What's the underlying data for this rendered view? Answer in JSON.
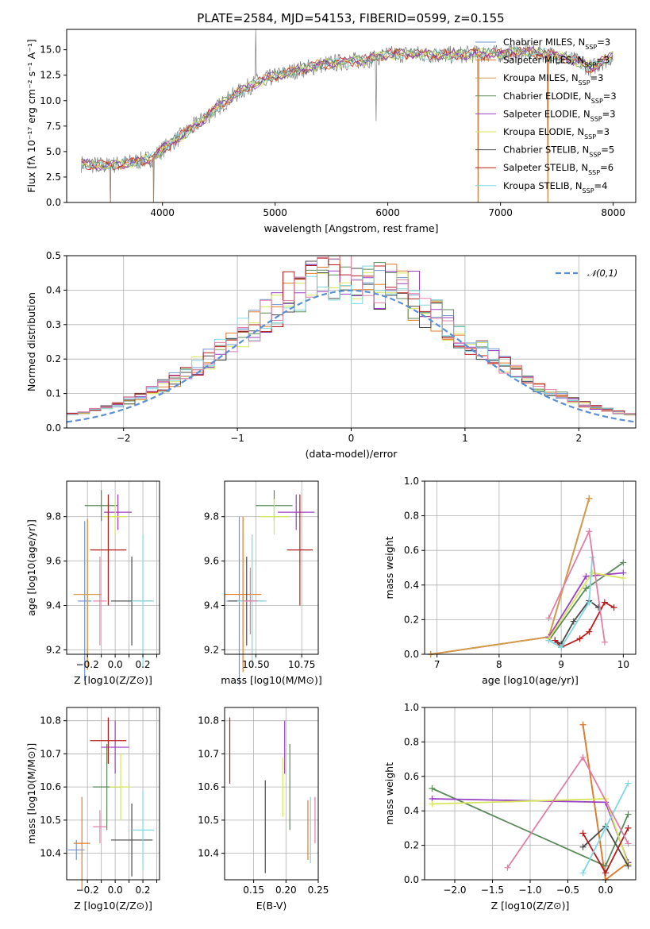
{
  "figure": {
    "title": "PLATE=2584, MJD=54153, FIBERID=0599, z=0.155"
  },
  "colors": {
    "Chabrier MILES": "#6f96d2",
    "Salpeter MILES": "#e57b24",
    "Kroupa MILES": "#d69b4b",
    "Chabrier ELODIE": "#5a8a5a",
    "Salpeter ELODIE": "#9b3fc2",
    "Kroupa ELODIE": "#d6e65a",
    "Chabrier STELIB": "#4a4a4a",
    "Salpeter STELIB": "#b71c1c",
    "Kroupa STELIB": "#7fd7e0",
    "pink": "#e07fa6",
    "normal_curve": "#5b8fd4"
  },
  "chart_data": [
    {
      "id": "spectrum",
      "type": "line",
      "title": "PLATE=2584, MJD=54153, FIBERID=0599, z=0.155",
      "xlabel": "wavelength [Angstrom, rest frame]",
      "ylabel": "Flux [fλ 10⁻¹⁷ erg cm⁻² s⁻¹ A⁻¹]",
      "xlim": [
        3150,
        8200
      ],
      "ylim": [
        0,
        17
      ],
      "xticks": [
        4000,
        5000,
        6000,
        7000,
        8000
      ],
      "yticks": [
        0.0,
        2.5,
        5.0,
        7.5,
        10.0,
        12.5,
        15.0
      ],
      "grid": false,
      "legend_position": "top-right",
      "legend": [
        "Chabrier MILES, N_SSP=3",
        "Salpeter MILES, N_SSP=3",
        "Kroupa MILES, N_SSP=3",
        "Chabrier ELODIE, N_SSP=3",
        "Salpeter ELODIE, N_SSP=3",
        "Kroupa ELODIE, N_SSP=3",
        "Chabrier STELIB, N_SSP=5",
        "Salpeter STELIB, N_SSP=6",
        "Kroupa STELIB, N_SSP=4"
      ],
      "continuum": [
        [
          3280,
          3.8
        ],
        [
          3500,
          3.6
        ],
        [
          3700,
          3.9
        ],
        [
          3900,
          4.3
        ],
        [
          4000,
          5.2
        ],
        [
          4200,
          6.8
        ],
        [
          4400,
          8.5
        ],
        [
          4600,
          10.3
        ],
        [
          4800,
          11.6
        ],
        [
          5000,
          12.4
        ],
        [
          5200,
          13.0
        ],
        [
          5400,
          13.5
        ],
        [
          5600,
          13.8
        ],
        [
          5800,
          14.0
        ],
        [
          6000,
          14.5
        ],
        [
          6200,
          14.6
        ],
        [
          6400,
          14.5
        ],
        [
          6600,
          14.5
        ],
        [
          6800,
          14.6
        ],
        [
          7000,
          14.6
        ],
        [
          7200,
          14.8
        ],
        [
          7400,
          14.6
        ],
        [
          7600,
          14.2
        ],
        [
          7800,
          13.2
        ],
        [
          8000,
          14.4
        ]
      ],
      "spikes": [
        [
          3540,
          0
        ],
        [
          3920,
          0
        ],
        [
          4830,
          17
        ],
        [
          5895,
          8.0
        ],
        [
          6800,
          0
        ],
        [
          7420,
          0
        ]
      ]
    },
    {
      "id": "residuals",
      "type": "histogram",
      "xlabel": "(data-model)/error",
      "ylabel": "Normed distribution",
      "xlim": [
        -2.5,
        2.5
      ],
      "ylim": [
        0,
        0.5
      ],
      "xticks": [
        -2,
        -1,
        0,
        1,
        2
      ],
      "yticks": [
        0.0,
        0.1,
        0.2,
        0.3,
        0.4,
        0.5
      ],
      "grid": true,
      "legend_position": "top-right",
      "legend": [
        "𝒩(0,1)"
      ],
      "bin_width": 0.1
    },
    {
      "id": "age-vs-Z",
      "type": "errorbar",
      "xlabel": "Z [log10(Z/Z⊙)]",
      "ylabel": "age  [log10(age/yr)]",
      "xlim": [
        -0.35,
        0.32
      ],
      "ylim": [
        9.18,
        9.96
      ],
      "xticks": [
        -0.2,
        -0.1,
        0.0,
        0.1,
        0.2,
        0.3
      ],
      "xtick_labels": [
        "−0.2",
        "",
        "0.0",
        "",
        "0.2",
        ""
      ],
      "yticks": [
        9.2,
        9.4,
        9.6,
        9.8
      ],
      "grid": true,
      "points": [
        {
          "series": "Chabrier MILES",
          "x": -0.22,
          "y": 9.42,
          "xerr": 0.05,
          "yerr": 0.36
        },
        {
          "series": "Salpeter MILES",
          "x": -0.2,
          "y": 9.45,
          "xerr": 0.1,
          "yerr": 0.34
        },
        {
          "series": "Kroupa MILES",
          "x": -0.2,
          "y": 9.45,
          "xerr": 0.1,
          "yerr": 0.34
        },
        {
          "series": "Chabrier ELODIE",
          "x": -0.1,
          "y": 9.85,
          "xerr": 0.12,
          "yerr": 0.07
        },
        {
          "series": "Salpeter ELODIE",
          "x": 0.02,
          "y": 9.82,
          "xerr": 0.1,
          "yerr": 0.08
        },
        {
          "series": "Kroupa ELODIE",
          "x": 0.0,
          "y": 9.8,
          "xerr": 0.08,
          "yerr": 0.08
        },
        {
          "series": "Chabrier STELIB",
          "x": 0.12,
          "y": 9.42,
          "xerr": 0.15,
          "yerr": 0.2
        },
        {
          "series": "Salpeter STELIB",
          "x": -0.05,
          "y": 9.65,
          "xerr": 0.13,
          "yerr": 0.25
        },
        {
          "series": "Kroupa STELIB",
          "x": 0.2,
          "y": 9.42,
          "xerr": 0.08,
          "yerr": 0.3
        },
        {
          "series": "pink",
          "x": -0.11,
          "y": 9.42,
          "xerr": 0.05,
          "yerr": 0.2
        }
      ]
    },
    {
      "id": "age-vs-mass",
      "type": "errorbar",
      "xlabel": "mass [log10(M/M⊙)]",
      "ylabel": "",
      "xlim": [
        10.33,
        10.84
      ],
      "ylim": [
        9.18,
        9.96
      ],
      "xticks": [
        10.5,
        10.75
      ],
      "xtick_labels": [
        "10.50",
        "10.75"
      ],
      "yticks": [
        9.2,
        9.4,
        9.6,
        9.8
      ],
      "grid": true,
      "points": [
        {
          "series": "Chabrier MILES",
          "x": 10.41,
          "y": 9.42,
          "xerr": 0.07,
          "yerr": 0.38
        },
        {
          "series": "Salpeter MILES",
          "x": 10.43,
          "y": 9.45,
          "xerr": 0.1,
          "yerr": 0.35
        },
        {
          "series": "Chabrier ELODIE",
          "x": 10.6,
          "y": 9.85,
          "xerr": 0.1,
          "yerr": 0.07
        },
        {
          "series": "Salpeter ELODIE",
          "x": 10.72,
          "y": 9.82,
          "xerr": 0.1,
          "yerr": 0.08
        },
        {
          "series": "Kroupa ELODIE",
          "x": 10.6,
          "y": 9.8,
          "xerr": 0.08,
          "yerr": 0.08
        },
        {
          "series": "Chabrier STELIB",
          "x": 10.45,
          "y": 9.42,
          "xerr": 0.1,
          "yerr": 0.2
        },
        {
          "series": "Salpeter STELIB",
          "x": 10.74,
          "y": 9.65,
          "xerr": 0.07,
          "yerr": 0.25
        },
        {
          "series": "Kroupa STELIB",
          "x": 10.48,
          "y": 9.42,
          "xerr": 0.08,
          "yerr": 0.3
        },
        {
          "series": "pink",
          "x": 10.47,
          "y": 9.42,
          "xerr": 0.04,
          "yerr": 0.15
        }
      ]
    },
    {
      "id": "weight-vs-age",
      "type": "line",
      "xlabel": "age  [log10(age/yr)]",
      "ylabel": "mass weight",
      "xlim": [
        6.8,
        10.2
      ],
      "ylim": [
        0,
        1.0
      ],
      "xticks": [
        7,
        8,
        9,
        10
      ],
      "yticks": [
        0.0,
        0.2,
        0.4,
        0.6,
        0.8,
        1.0
      ],
      "grid": true,
      "series": [
        {
          "name": "Chabrier MILES",
          "x": [
            6.9,
            8.8,
            9.45
          ],
          "y": [
            0.0,
            0.1,
            0.9
          ]
        },
        {
          "name": "Salpeter MILES",
          "x": [
            6.9,
            8.8,
            9.45
          ],
          "y": [
            0.0,
            0.1,
            0.9
          ]
        },
        {
          "name": "Kroupa MILES",
          "x": [
            6.9,
            8.8,
            9.45
          ],
          "y": [
            0.0,
            0.1,
            0.9
          ]
        },
        {
          "name": "Chabrier ELODIE",
          "x": [
            8.8,
            9.4,
            10.0
          ],
          "y": [
            0.08,
            0.38,
            0.53
          ]
        },
        {
          "name": "Salpeter ELODIE",
          "x": [
            8.8,
            9.4,
            10.0
          ],
          "y": [
            0.1,
            0.45,
            0.47
          ]
        },
        {
          "name": "Kroupa ELODIE",
          "x": [
            8.8,
            9.5,
            10.0
          ],
          "y": [
            0.09,
            0.47,
            0.44
          ]
        },
        {
          "name": "Chabrier STELIB",
          "x": [
            8.9,
            9.0,
            9.2,
            9.45,
            9.6
          ],
          "y": [
            0.08,
            0.06,
            0.19,
            0.31,
            0.27
          ]
        },
        {
          "name": "Salpeter STELIB",
          "x": [
            8.9,
            9.0,
            9.3,
            9.45,
            9.7,
            9.85
          ],
          "y": [
            0.08,
            0.04,
            0.09,
            0.13,
            0.3,
            0.27
          ]
        },
        {
          "name": "Kroupa STELIB",
          "x": [
            8.8,
            9.0,
            9.45,
            9.5
          ],
          "y": [
            0.08,
            0.04,
            0.3,
            0.56
          ]
        },
        {
          "name": "pink",
          "x": [
            8.8,
            9.45,
            9.7
          ],
          "y": [
            0.21,
            0.71,
            0.07
          ]
        }
      ]
    },
    {
      "id": "mass-vs-Z",
      "type": "errorbar",
      "xlabel": "Z [log10(Z/Z⊙)]",
      "ylabel": "mass [log10(M/M⊙)]",
      "xlim": [
        -0.35,
        0.32
      ],
      "ylim": [
        10.32,
        10.84
      ],
      "xticks": [
        -0.2,
        -0.1,
        0.0,
        0.1,
        0.2,
        0.3
      ],
      "xtick_labels": [
        "−0.2",
        "",
        "0.0",
        "",
        "0.2",
        ""
      ],
      "yticks": [
        10.4,
        10.5,
        10.6,
        10.7,
        10.8
      ],
      "grid": true,
      "points": [
        {
          "series": "Chabrier MILES",
          "x": -0.28,
          "y": 10.41,
          "xerr": 0.06,
          "yerr": 0.03
        },
        {
          "series": "Salpeter MILES",
          "x": -0.24,
          "y": 10.43,
          "xerr": 0.06,
          "yerr": 0.14
        },
        {
          "series": "Chabrier ELODIE",
          "x": -0.06,
          "y": 10.6,
          "xerr": 0.1,
          "yerr": 0.13
        },
        {
          "series": "Salpeter ELODIE",
          "x": 0.0,
          "y": 10.72,
          "xerr": 0.1,
          "yerr": 0.08
        },
        {
          "series": "Kroupa ELODIE",
          "x": 0.04,
          "y": 10.6,
          "xerr": 0.08,
          "yerr": 0.1
        },
        {
          "series": "Chabrier STELIB",
          "x": 0.12,
          "y": 10.44,
          "xerr": 0.15,
          "yerr": 0.11
        },
        {
          "series": "Salpeter STELIB",
          "x": -0.05,
          "y": 10.74,
          "xerr": 0.13,
          "yerr": 0.07
        },
        {
          "series": "Kroupa STELIB",
          "x": 0.2,
          "y": 10.47,
          "xerr": 0.08,
          "yerr": 0.12
        },
        {
          "series": "pink",
          "x": -0.11,
          "y": 10.48,
          "xerr": 0.05,
          "yerr": 0.05
        }
      ]
    },
    {
      "id": "mass-vs-EBV",
      "type": "errorbar",
      "xlabel": "E(B-V)",
      "ylabel": "",
      "xlim": [
        0.105,
        0.25
      ],
      "ylim": [
        10.32,
        10.84
      ],
      "xticks": [
        0.15,
        0.2,
        0.25
      ],
      "xtick_labels": [
        "0.15",
        "0.20",
        "0.25"
      ],
      "yticks": [
        10.4,
        10.5,
        10.6,
        10.7,
        10.8
      ],
      "grid": true,
      "points": [
        {
          "series": "Salpeter STELIB",
          "x": 0.113,
          "y": 10.71,
          "xerr": 0,
          "yerr": 0.1
        },
        {
          "series": "Chabrier STELIB",
          "x": 0.168,
          "y": 10.48,
          "xerr": 0,
          "yerr": 0.14
        },
        {
          "series": "Kroupa ELODIE",
          "x": 0.195,
          "y": 10.6,
          "xerr": 0,
          "yerr": 0.09
        },
        {
          "series": "Salpeter ELODIE",
          "x": 0.198,
          "y": 10.72,
          "xerr": 0,
          "yerr": 0.08
        },
        {
          "series": "Chabrier ELODIE",
          "x": 0.206,
          "y": 10.6,
          "xerr": 0,
          "yerr": 0.13
        },
        {
          "series": "Salpeter MILES",
          "x": 0.234,
          "y": 10.47,
          "xerr": 0,
          "yerr": 0.09
        },
        {
          "series": "Kroupa STELIB",
          "x": 0.238,
          "y": 10.47,
          "xerr": 0,
          "yerr": 0.1
        },
        {
          "series": "pink",
          "x": 0.245,
          "y": 10.5,
          "xerr": 0,
          "yerr": 0.07
        }
      ]
    },
    {
      "id": "weight-vs-Z",
      "type": "line",
      "xlabel": "Z [log10(Z/Z⊙)]",
      "ylabel": "mass weight",
      "xlim": [
        -2.4,
        0.4
      ],
      "ylim": [
        0,
        1.0
      ],
      "xticks": [
        -2.0,
        -1.5,
        -1.0,
        -0.5,
        0.0
      ],
      "xtick_labels": [
        "−2.0",
        "−1.5",
        "−1.0",
        "−0.5",
        "0.0"
      ],
      "yticks": [
        0.0,
        0.2,
        0.4,
        0.6,
        0.8,
        1.0
      ],
      "grid": true,
      "series": [
        {
          "name": "Chabrier MILES",
          "x": [
            -0.3,
            0.0,
            0.3
          ],
          "y": [
            0.9,
            0.0,
            0.1
          ]
        },
        {
          "name": "Salpeter MILES",
          "x": [
            -0.3,
            0.0,
            0.3
          ],
          "y": [
            0.9,
            0.0,
            0.1
          ]
        },
        {
          "name": "Chabrier ELODIE",
          "x": [
            -2.3,
            0.0,
            0.3
          ],
          "y": [
            0.53,
            0.08,
            0.38
          ]
        },
        {
          "name": "Salpeter ELODIE",
          "x": [
            -2.3,
            0.0,
            0.3
          ],
          "y": [
            0.47,
            0.45,
            0.1
          ]
        },
        {
          "name": "Kroupa ELODIE",
          "x": [
            -2.3,
            0.0,
            0.3
          ],
          "y": [
            0.44,
            0.47,
            0.09
          ]
        },
        {
          "name": "Chabrier STELIB",
          "x": [
            -0.3,
            0.0,
            0.3
          ],
          "y": [
            0.19,
            0.31,
            0.08
          ]
        },
        {
          "name": "Salpeter STELIB",
          "x": [
            -0.3,
            0.0,
            0.3
          ],
          "y": [
            0.27,
            0.04,
            0.3
          ]
        },
        {
          "name": "Kroupa STELIB",
          "x": [
            -0.3,
            0.0,
            0.3
          ],
          "y": [
            0.04,
            0.3,
            0.56
          ]
        },
        {
          "name": "pink",
          "x": [
            -1.3,
            -0.3,
            0.3
          ],
          "y": [
            0.07,
            0.71,
            0.21
          ]
        }
      ]
    }
  ]
}
